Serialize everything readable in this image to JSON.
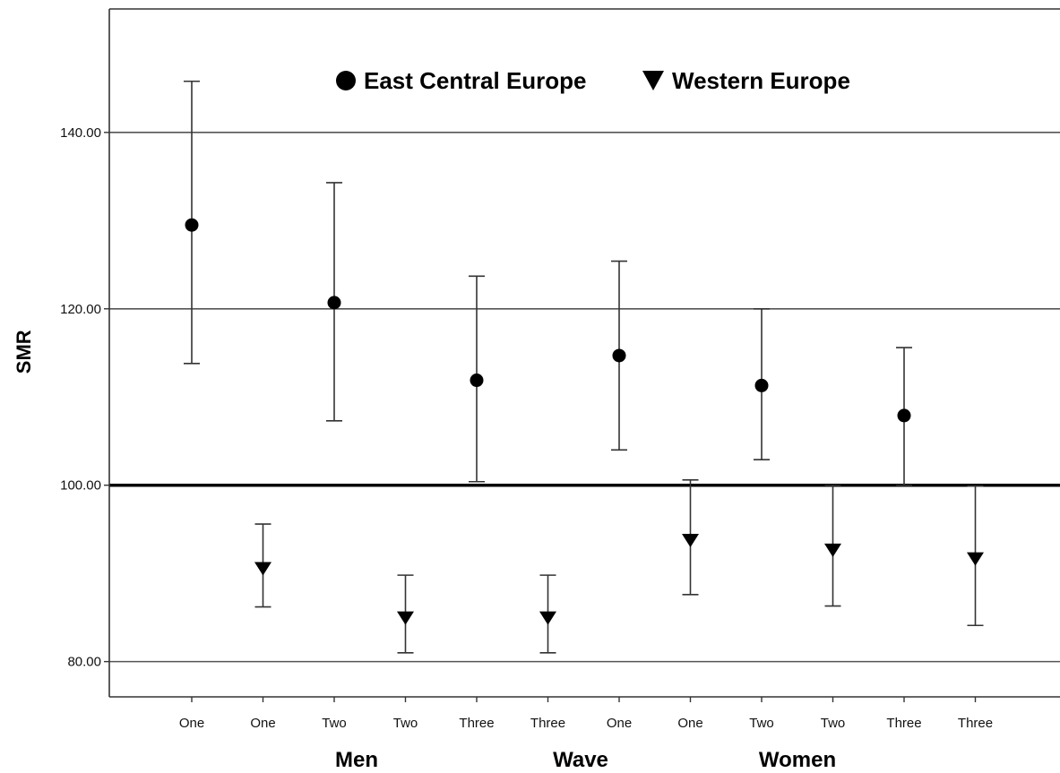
{
  "chart_data": {
    "type": "scatter",
    "ylabel": "SMR",
    "xlabel": "Wave",
    "group_labels": [
      "Men",
      "Women"
    ],
    "ylim": [
      76,
      154
    ],
    "yticks": [
      80,
      100,
      120,
      140
    ],
    "ytick_labels": [
      "80.00",
      "100.00",
      "120.00",
      "140.00"
    ],
    "reference_line": 100,
    "grid": true,
    "legend_position": "top-center",
    "categories": [
      "One",
      "One",
      "Two",
      "Two",
      "Three",
      "Three",
      "One",
      "One",
      "Two",
      "Two",
      "Three",
      "Three"
    ],
    "series": [
      {
        "name": "East Central Europe",
        "marker": "circle",
        "x_index": [
          0,
          2,
          4,
          6,
          8,
          10
        ],
        "values": [
          129.5,
          120.7,
          111.9,
          114.7,
          111.3,
          107.9
        ],
        "lower": [
          113.8,
          107.3,
          100.4,
          104.0,
          102.9,
          100.0
        ],
        "upper": [
          145.8,
          134.3,
          123.7,
          125.4,
          120.0,
          115.6
        ]
      },
      {
        "name": "Western Europe",
        "marker": "triangle-down",
        "x_index": [
          1,
          3,
          5,
          7,
          9,
          11
        ],
        "values": [
          90.6,
          85.0,
          85.0,
          93.8,
          92.7,
          91.7
        ],
        "lower": [
          86.2,
          81.0,
          81.0,
          87.6,
          86.3,
          84.1
        ],
        "upper": [
          95.6,
          89.8,
          89.8,
          100.6,
          100.0,
          99.9
        ]
      }
    ]
  }
}
